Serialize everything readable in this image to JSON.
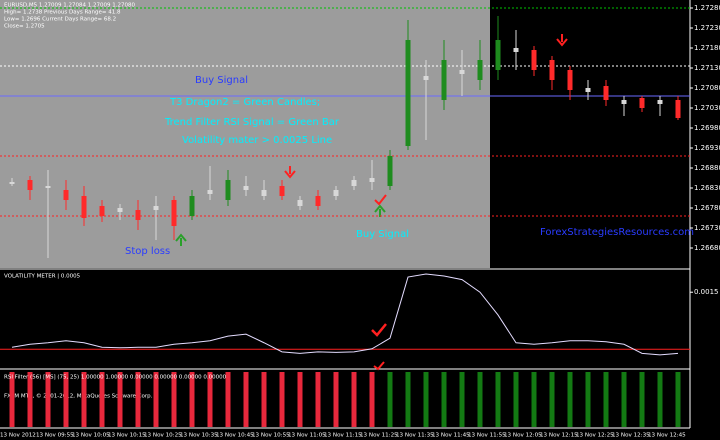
{
  "chart_data": [
    {
      "type": "candlestick",
      "info": [
        "EURUSD,M5  1.27009 1.27084 1.27009 1.27080",
        "High= 1.2738   Previous Days Range= 41.8",
        "Low= 1.2696   Current Days Range= 68.2",
        "Close= 1.2705"
      ],
      "annotations": [
        {
          "text": "Buy Signal",
          "color": "#2a3cff"
        },
        {
          "text": "T3 Dragon2  = Green Candles;",
          "color": "#00f0ff"
        },
        {
          "text": "Trend Filter RSI Signal = Green Bar",
          "color": "#00f0ff"
        },
        {
          "text": "Volatility mater > 0.0025 Line",
          "color": "#00f0ff"
        },
        {
          "text": "Stop loss",
          "color": "#2a3cff"
        },
        {
          "text": "Buy Signal",
          "color": "#00f0ff"
        },
        {
          "text": "ForexStrategiesResources.com",
          "color": "#2a3cff"
        }
      ],
      "categories": [
        "13 Nov 2012",
        null,
        "13 Nov 09:55",
        null,
        "13 Nov 10:05",
        null,
        "13 Nov 10:15",
        null,
        "13 Nov 10:25",
        null,
        "13 Nov 10:35",
        null,
        "13 Nov 10:45",
        null,
        "13 Nov 10:55",
        null,
        "13 Nov 11:05",
        null,
        "13 Nov 11:15",
        null,
        "13 Nov 11:25",
        null,
        "13 Nov 11:35",
        null,
        "13 Nov 11:45",
        null,
        "13 Nov 11:55",
        null,
        "13 Nov 12:05",
        null,
        "13 Nov 12:15",
        null,
        "13 Nov 12:25",
        null,
        "13 Nov 12:35",
        null,
        "13 Nov 12:45",
        null
      ],
      "open": [
        1.26845,
        1.2685,
        1.26835,
        1.26825,
        1.2681,
        1.26785,
        1.2678,
        1.26775,
        1.26785,
        1.268,
        1.2676,
        1.26825,
        1.268,
        1.26835,
        1.26825,
        1.26835,
        1.268,
        1.2681,
        1.26825,
        1.2685,
        1.26855,
        1.26835,
        1.26935,
        1.2711,
        1.2705,
        1.27125,
        1.271,
        1.27125,
        1.2718,
        1.27175,
        1.2715,
        1.27125,
        1.2708,
        1.27085,
        1.2705,
        1.27055,
        1.2705,
        1.2705
      ],
      "high": [
        1.26855,
        1.2686,
        1.26875,
        1.2685,
        1.26835,
        1.268,
        1.2679,
        1.268,
        1.2681,
        1.2681,
        1.26825,
        1.26885,
        1.26875,
        1.2686,
        1.2685,
        1.2685,
        1.2681,
        1.26825,
        1.26835,
        1.2686,
        1.269,
        1.26925,
        1.2725,
        1.2715,
        1.272,
        1.27175,
        1.272,
        1.2726,
        1.27225,
        1.27185,
        1.2716,
        1.27135,
        1.271,
        1.271,
        1.2706,
        1.2706,
        1.2706,
        1.2706
      ],
      "low": [
        1.26835,
        1.268,
        1.26655,
        1.26775,
        1.26735,
        1.26745,
        1.2675,
        1.26725,
        1.267,
        1.267,
        1.2675,
        1.268,
        1.26785,
        1.2681,
        1.268,
        1.268,
        1.26775,
        1.26775,
        1.268,
        1.26825,
        1.26825,
        1.26825,
        1.26925,
        1.2695,
        1.27025,
        1.2706,
        1.27075,
        1.271,
        1.27125,
        1.2711,
        1.27075,
        1.2705,
        1.2705,
        1.27035,
        1.2701,
        1.2702,
        1.2701,
        1.27
      ],
      "close": [
        1.2684,
        1.26825,
        1.2683,
        1.268,
        1.26755,
        1.2676,
        1.2677,
        1.2675,
        1.26775,
        1.26735,
        1.2681,
        1.26815,
        1.2685,
        1.26825,
        1.2681,
        1.2681,
        1.26785,
        1.26785,
        1.2681,
        1.26835,
        1.26845,
        1.2691,
        1.272,
        1.271,
        1.2715,
        1.27115,
        1.2715,
        1.272,
        1.2717,
        1.27125,
        1.271,
        1.27075,
        1.2707,
        1.2705,
        1.2704,
        1.2703,
        1.2704,
        1.27005
      ],
      "colors": [
        "#d8d8d8",
        "#ff2a2a",
        "#d8d8d8",
        "#ff2a2a",
        "#ff2a2a",
        "#ff2a2a",
        "#d8d8d8",
        "#ff2a2a",
        "#d8d8d8",
        "#ff2a2a",
        "#1e8c1e",
        "#d8d8d8",
        "#1e8c1e",
        "#d8d8d8",
        "#d8d8d8",
        "#ff2a2a",
        "#d8d8d8",
        "#ff2a2a",
        "#d8d8d8",
        "#d8d8d8",
        "#d8d8d8",
        "#1e8c1e",
        "#1e8c1e",
        "#d8d8d8",
        "#1e8c1e",
        "#d8d8d8",
        "#1e8c1e",
        "#1e8c1e",
        "#d8d8d8",
        "#ff2a2a",
        "#ff2a2a",
        "#ff2a2a",
        "#d8d8d8",
        "#ff2a2a",
        "#d8d8d8",
        "#ff2a2a",
        "#d8d8d8",
        "#ff2a2a"
      ],
      "levels": [
        {
          "value": 1.2728,
          "color": "#00c000",
          "style": "dotted"
        },
        {
          "value": 1.27135,
          "color": "#ffffff",
          "style": "dotted"
        },
        {
          "value": 1.2706,
          "color": "#6a6aff",
          "style": "solid"
        },
        {
          "value": 1.2691,
          "color": "#ff2020",
          "style": "dotted"
        },
        {
          "value": 1.2676,
          "color": "#ff2020",
          "style": "dotted"
        }
      ],
      "ylim": [
        1.2663,
        1.273
      ],
      "yticks": [
        {
          "value": 1.2728,
          "label": "1.27280"
        },
        {
          "value": 1.2723,
          "label": "1.27230"
        },
        {
          "value": 1.2718,
          "label": "1.27180"
        },
        {
          "value": 1.2713,
          "label": "1.27130"
        },
        {
          "value": 1.2708,
          "label": "1.27080"
        },
        {
          "value": 1.2703,
          "label": "1.27030"
        },
        {
          "value": 1.2698,
          "label": "1.26980"
        },
        {
          "value": 1.2693,
          "label": "1.26930"
        },
        {
          "value": 1.2688,
          "label": "1.26880"
        },
        {
          "value": 1.2683,
          "label": "1.26830"
        },
        {
          "value": 1.2678,
          "label": "1.26780"
        },
        {
          "value": 1.2673,
          "label": "1.26730"
        },
        {
          "value": 1.2668,
          "label": "1.26680"
        }
      ]
    },
    {
      "type": "line",
      "title": "VOLATILITY METER |  0.0005",
      "color": "#e4dcff",
      "values": [
        0.00041,
        0.00047,
        0.0005,
        0.00054,
        0.0005,
        0.00041,
        0.0004,
        0.00041,
        0.00041,
        0.00047,
        0.0005,
        0.00054,
        0.00063,
        0.00067,
        0.0005,
        0.00032,
        0.00029,
        0.00032,
        0.00031,
        0.00032,
        0.00038,
        0.00059,
        0.0018,
        0.00186,
        0.00182,
        0.00175,
        0.0015,
        0.00105,
        0.0005,
        0.00047,
        0.0005,
        0.00054,
        0.00054,
        0.00052,
        0.00047,
        0.00029,
        0.00026,
        0.00029
      ],
      "threshold": {
        "value": 0.00037,
        "color": "#ff2020"
      },
      "ylim": [
        0,
        0.0019
      ],
      "yticks": [
        0.0015
      ]
    },
    {
      "type": "bar",
      "title": "RSI Filter (56) [MS] (75, 25)  1.00000  1.00000  0.00000  0.00000  0.00000  0.00000",
      "values": [
        1,
        1,
        1,
        1,
        1,
        1,
        1,
        1,
        1,
        1,
        1,
        1,
        1,
        1,
        1,
        1,
        1,
        1,
        1,
        1,
        1,
        1,
        1,
        1,
        1,
        1,
        1,
        1,
        1,
        1,
        1,
        1,
        1,
        1,
        1,
        1,
        1,
        1
      ],
      "colors": [
        "#e8283c",
        "#e8283c",
        "#e8283c",
        "#e8283c",
        "#e8283c",
        "#e8283c",
        "#e8283c",
        "#e8283c",
        "#e8283c",
        "#e8283c",
        "#e8283c",
        "#e8283c",
        "#e8283c",
        "#e8283c",
        "#e8283c",
        "#e8283c",
        "#e8283c",
        "#e8283c",
        "#e8283c",
        "#e8283c",
        "#e8283c",
        "#137a13",
        "#137a13",
        "#137a13",
        "#137a13",
        "#137a13",
        "#137a13",
        "#137a13",
        "#137a13",
        "#137a13",
        "#137a13",
        "#137a13",
        "#137a13",
        "#137a13",
        "#137a13",
        "#137a13",
        "#137a13",
        "#137a13"
      ],
      "ylim": [
        0,
        1
      ]
    }
  ],
  "footer": "FXCM MT4, © 2001-2012, MetaQuotes Software Corp."
}
